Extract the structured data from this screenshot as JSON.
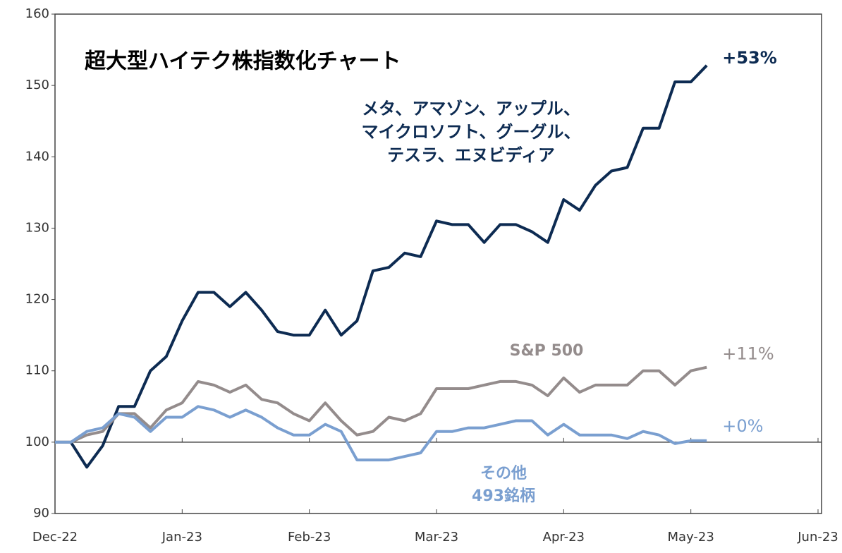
{
  "chart_data": {
    "type": "line",
    "title": "超大型ハイテク株指数化チャート",
    "subtitle": [
      "メタ、アマゾン、アップル、",
      "マイクロソフト、グーグル、",
      "テスラ、エヌビディア"
    ],
    "categories": [
      "Dec-22",
      null,
      null,
      null,
      null,
      null,
      null,
      null,
      "Jan-23",
      null,
      null,
      null,
      null,
      null,
      null,
      null,
      "Feb-23",
      null,
      null,
      null,
      null,
      null,
      null,
      null,
      "Mar-23",
      null,
      null,
      null,
      null,
      null,
      null,
      null,
      "Apr-23",
      null,
      null,
      null,
      null,
      null,
      null,
      null,
      "May-23",
      null,
      null,
      null,
      null,
      null,
      null,
      null,
      "Jun-23"
    ],
    "series": [
      {
        "color": "#0d2b52",
        "label": "+53%",
        "values": [
          100,
          100,
          96.5,
          99.5,
          105,
          105,
          110,
          112,
          117,
          121,
          121,
          119,
          121,
          118.5,
          115.5,
          115,
          115,
          118.5,
          115,
          117,
          124,
          124.5,
          126.5,
          126,
          131,
          130.5,
          130.5,
          128,
          130.5,
          130.5,
          129.5,
          128,
          134,
          132.5,
          136,
          138,
          138.5,
          144,
          144,
          150.5,
          150.5,
          152.8,
          null,
          null,
          null,
          null,
          null,
          null,
          null
        ]
      },
      {
        "name": "S&P 500",
        "color": "#948c8c",
        "label": "+11%",
        "values": [
          100,
          100,
          101,
          101.5,
          104,
          104,
          102,
          104.5,
          105.5,
          108.5,
          108,
          107,
          108,
          106,
          105.5,
          104,
          103,
          105.5,
          103,
          101,
          101.5,
          103.5,
          103,
          104,
          107.5,
          107.5,
          107.5,
          108,
          108.5,
          108.5,
          108,
          106.5,
          109,
          107,
          108,
          108,
          108,
          110,
          110,
          108,
          110,
          110.5,
          null,
          null,
          null,
          null,
          null,
          null,
          null
        ]
      },
      {
        "name": "その他",
        "name2": "493銘柄",
        "color": "#7a9fd0",
        "label": "+0%",
        "values": [
          100,
          100,
          101.5,
          102,
          104,
          103.5,
          101.5,
          103.5,
          103.5,
          105,
          104.5,
          103.5,
          104.5,
          103.5,
          102,
          101,
          101,
          102.5,
          101.5,
          97.5,
          97.5,
          97.5,
          98,
          98.5,
          101.5,
          101.5,
          102,
          102,
          102.5,
          103,
          103,
          101,
          102.5,
          101,
          101,
          101,
          100.5,
          101.5,
          101,
          99.8,
          100.2,
          100.2,
          null,
          null,
          null,
          null,
          null,
          null,
          null
        ]
      }
    ],
    "ylim": [
      90,
      160
    ],
    "yticks": [
      90,
      100,
      110,
      120,
      130,
      140,
      150,
      160
    ]
  }
}
